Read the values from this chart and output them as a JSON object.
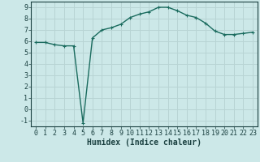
{
  "x": [
    0,
    1,
    2,
    3,
    4,
    5,
    6,
    7,
    8,
    9,
    10,
    11,
    12,
    13,
    14,
    15,
    16,
    17,
    18,
    19,
    20,
    21,
    22,
    23
  ],
  "y": [
    5.9,
    5.9,
    5.7,
    5.6,
    5.6,
    -1.2,
    6.3,
    7.0,
    7.2,
    7.5,
    8.1,
    8.4,
    8.6,
    9.0,
    9.0,
    8.7,
    8.3,
    8.1,
    7.6,
    6.9,
    6.6,
    6.6,
    6.7,
    6.8
  ],
  "line_color": "#1a6b5e",
  "marker": "+",
  "marker_size": 3,
  "bg_color": "#cce8e8",
  "grid_color": "#b8d4d4",
  "xlabel": "Humidex (Indice chaleur)",
  "xlim": [
    -0.5,
    23.5
  ],
  "ylim": [
    -1.5,
    9.5
  ],
  "yticks": [
    -1,
    0,
    1,
    2,
    3,
    4,
    5,
    6,
    7,
    8,
    9
  ],
  "xticks": [
    0,
    1,
    2,
    3,
    4,
    5,
    6,
    7,
    8,
    9,
    10,
    11,
    12,
    13,
    14,
    15,
    16,
    17,
    18,
    19,
    20,
    21,
    22,
    23
  ],
  "font_color": "#1a4040",
  "xlabel_fontsize": 7,
  "tick_fontsize": 6,
  "linewidth": 1.0,
  "marker_edge_width": 0.8
}
